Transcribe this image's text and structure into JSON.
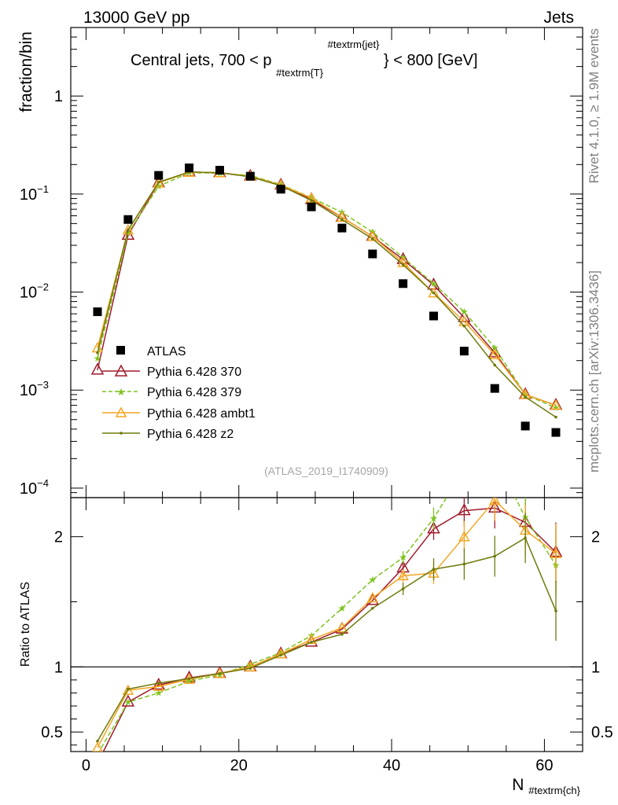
{
  "header": {
    "left": "13000 GeV pp",
    "right": "Jets",
    "side_top": "Rivet 4.1.0, ≥ 1.9M events",
    "side_bottom": "mcplots.cern.ch [arXiv:1306.3436]"
  },
  "colors": {
    "atlas": "#000000",
    "p370": "#a01a2c",
    "p379": "#7fc41f",
    "ambt1": "#f5a623",
    "z2": "#6f7a0b"
  },
  "chart_data": [
    {
      "type": "scatter",
      "title": "Central jets, 700 < p",
      "title_sub": "#textrm{T}",
      "title_sup": "#textrm{jet}",
      "title_tail": "} < 800 [GeV]",
      "ylabel": "fraction/bin",
      "yscale": "log",
      "ylim": [
        8e-05,
        5
      ],
      "xlim": [
        -2,
        65
      ],
      "yticks": [
        {
          "value": 1,
          "base": "1",
          "exp": ""
        },
        {
          "value": 0.1,
          "base": "10",
          "exp": "−1"
        },
        {
          "value": 0.01,
          "base": "10",
          "exp": "−2"
        },
        {
          "value": 0.001,
          "base": "10",
          "exp": "−3"
        },
        {
          "value": 0.0001,
          "base": "10",
          "exp": "−4"
        }
      ],
      "watermark": "(ATLAS_2019_I1740909)",
      "x": [
        1.5,
        5.5,
        9.5,
        13.5,
        17.5,
        21.5,
        25.5,
        29.5,
        33.5,
        37.5,
        41.5,
        45.5,
        49.5,
        53.5,
        57.5,
        61.5
      ],
      "series": [
        {
          "name": "ATLAS",
          "key": "atlas",
          "values": [
            0.0063,
            0.055,
            0.155,
            0.185,
            0.175,
            0.152,
            0.112,
            0.074,
            0.045,
            0.0245,
            0.0122,
            0.0057,
            0.0025,
            0.00104,
            0.00043,
            0.00037
          ]
        },
        {
          "name": "Pythia 6.428 370",
          "key": "p370",
          "values": [
            0.0016,
            0.038,
            0.13,
            0.168,
            0.165,
            0.152,
            0.123,
            0.088,
            0.058,
            0.037,
            0.0215,
            0.0118,
            0.0055,
            0.0024,
            0.0009,
            0.0007
          ]
        },
        {
          "name": "Pythia 6.428 379",
          "key": "p379",
          "values": [
            0.0021,
            0.04,
            0.12,
            0.165,
            0.163,
            0.155,
            0.125,
            0.092,
            0.065,
            0.041,
            0.0225,
            0.0122,
            0.0063,
            0.0027,
            0.0009,
            0.00066
          ]
        },
        {
          "name": "Pythia 6.428 ambt1",
          "key": "ambt1",
          "values": [
            0.0027,
            0.043,
            0.13,
            0.167,
            0.165,
            0.152,
            0.124,
            0.091,
            0.058,
            0.037,
            0.02,
            0.0098,
            0.005,
            0.0023,
            0.0009,
            0.0007
          ]
        },
        {
          "name": "Pythia 6.428 z2",
          "key": "z2",
          "values": [
            0.0024,
            0.043,
            0.132,
            0.168,
            0.165,
            0.15,
            0.122,
            0.086,
            0.055,
            0.035,
            0.019,
            0.0098,
            0.0045,
            0.0018,
            0.00085,
            0.00053
          ]
        }
      ]
    },
    {
      "type": "line",
      "ylabel": "Ratio to ATLAS",
      "xlabel": "N",
      "xlabel_sub": "#textrm{ch}",
      "ylim": [
        0.35,
        2.3
      ],
      "xlim": [
        -2,
        65
      ],
      "yticks": [
        0.5,
        1,
        2
      ],
      "xticks": [
        0,
        20,
        40,
        60
      ],
      "x": [
        1.5,
        5.5,
        9.5,
        13.5,
        17.5,
        21.5,
        25.5,
        29.5,
        33.5,
        37.5,
        41.5,
        45.5,
        49.5,
        53.5,
        57.5,
        61.5
      ],
      "series": [
        {
          "name": "Pythia 6.428 370",
          "key": "p370",
          "values": [
            0.26,
            0.73,
            0.86,
            0.915,
            0.95,
            1.0,
            1.1,
            1.19,
            1.29,
            1.51,
            1.76,
            2.06,
            2.2,
            2.22,
            2.11,
            1.88
          ]
        },
        {
          "name": "Pythia 6.428 379",
          "key": "p379",
          "values": [
            0.33,
            0.73,
            0.8,
            0.89,
            0.94,
            1.02,
            1.11,
            1.24,
            1.45,
            1.67,
            1.84,
            2.14,
            2.52,
            2.6,
            2.15,
            1.78
          ]
        },
        {
          "name": "Pythia 6.428 ambt1",
          "key": "ambt1",
          "values": [
            0.38,
            0.82,
            0.85,
            0.905,
            0.95,
            1.0,
            1.1,
            1.21,
            1.3,
            1.53,
            1.7,
            1.72,
            2.0,
            2.28,
            2.05,
            1.87
          ]
        },
        {
          "name": "Pythia 6.428 z2",
          "key": "z2",
          "values": [
            0.43,
            0.83,
            0.875,
            0.91,
            0.95,
            0.99,
            1.09,
            1.19,
            1.25,
            1.45,
            1.6,
            1.75,
            1.79,
            1.85,
            1.99,
            1.43
          ]
        }
      ]
    }
  ]
}
